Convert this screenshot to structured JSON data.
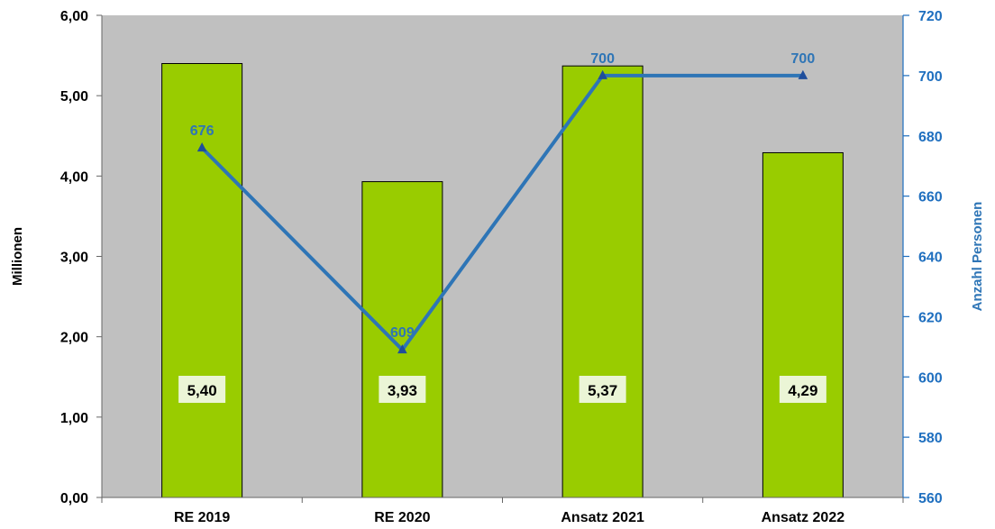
{
  "chart_data": {
    "type": "bar",
    "categories": [
      "RE 2019",
      "RE 2020",
      "Ansatz 2021",
      "Ansatz 2022"
    ],
    "series": [
      {
        "type": "bar",
        "axis": "left",
        "values": [
          5.4,
          3.93,
          5.37,
          4.29
        ],
        "value_labels": [
          "5,40",
          "3,93",
          "5,37",
          "4,29"
        ]
      },
      {
        "type": "line",
        "axis": "right",
        "values": [
          676,
          609,
          700,
          700
        ],
        "value_labels": [
          "676",
          "609",
          "700",
          "700"
        ]
      }
    ],
    "ylabel": "Millionen",
    "y2label": "Anzahl Personen",
    "ylim": [
      0,
      6
    ],
    "y2lim": [
      560,
      720
    ],
    "yticks": [
      "0,00",
      "1,00",
      "2,00",
      "3,00",
      "4,00",
      "5,00",
      "6,00"
    ],
    "y2ticks": [
      "560",
      "580",
      "600",
      "620",
      "640",
      "660",
      "680",
      "700",
      "720"
    ],
    "colors": {
      "plot_bg": "#c0c0c0",
      "bar_fill": "#99cc00",
      "bar_stroke": "#000000",
      "line": "#2e75b6",
      "right_axis": "#1f6fbf",
      "label_box": "#ebf5d6"
    },
    "grid": false,
    "legend": "none"
  }
}
